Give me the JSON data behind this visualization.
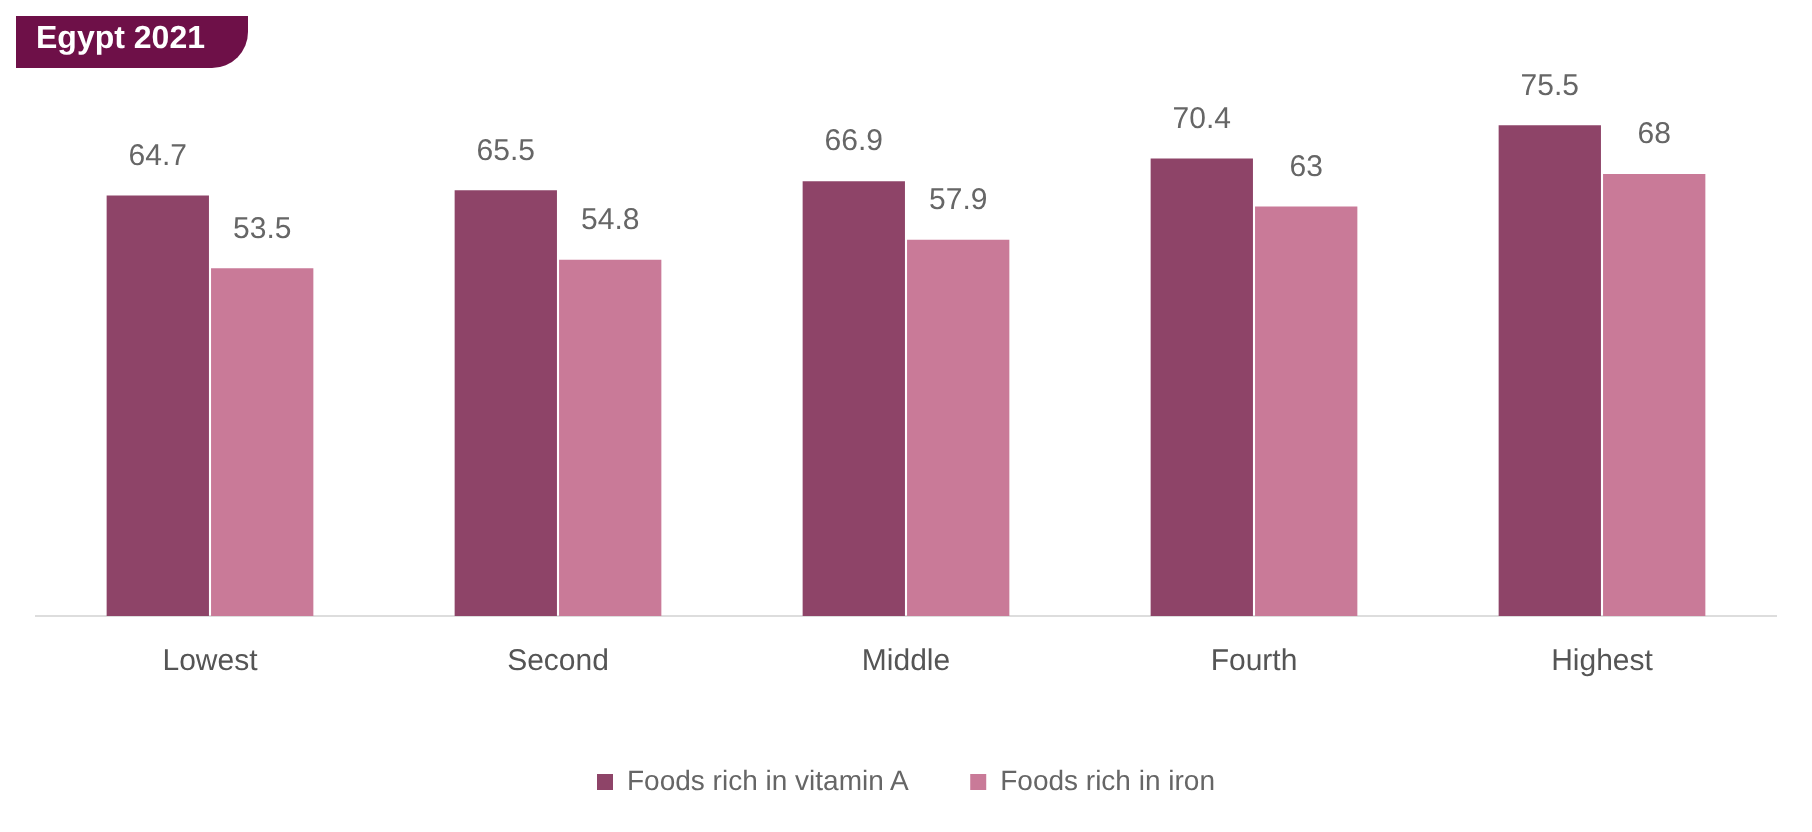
{
  "chart_data": {
    "type": "bar",
    "title": "Egypt 2021",
    "categories": [
      "Lowest",
      "Second",
      "Middle",
      "Fourth",
      "Highest"
    ],
    "series": [
      {
        "name": "Foods rich in vitamin A",
        "color": "#8e4468",
        "values": [
          64.7,
          65.5,
          66.9,
          70.4,
          75.5
        ]
      },
      {
        "name": "Foods rich in iron",
        "color": "#c97a98",
        "values": [
          53.5,
          54.8,
          57.9,
          63,
          68
        ]
      }
    ],
    "tick_labels": "x",
    "data_labels": true,
    "legend": "bottom",
    "grid": false
  }
}
